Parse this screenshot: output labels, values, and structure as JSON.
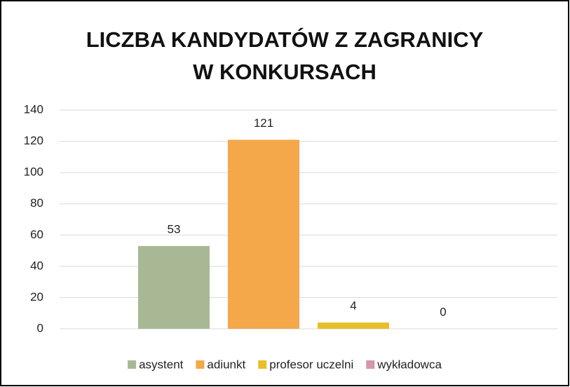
{
  "chart_data": {
    "type": "bar",
    "title": "LICZBA KANDYDATÓW Z ZAGRANICY W KONKURSACH",
    "categories": [
      null
    ],
    "series": [
      {
        "name": "asystent",
        "color": "#a9b894",
        "values": [
          53
        ]
      },
      {
        "name": "adiunkt",
        "color": "#f4a84a",
        "values": [
          121
        ]
      },
      {
        "name": "profesor uczelni",
        "color": "#e8bf2a",
        "values": [
          4
        ]
      },
      {
        "name": "wykładowca",
        "color": "#d596ae",
        "values": [
          0
        ]
      }
    ],
    "ylim": [
      0,
      140
    ],
    "yticks": [
      0,
      20,
      40,
      60,
      80,
      100,
      120,
      140
    ],
    "grid": true,
    "legend": "bottom"
  }
}
